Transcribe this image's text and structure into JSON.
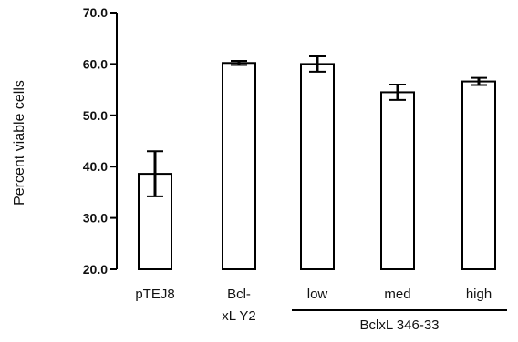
{
  "chart_data": {
    "type": "bar",
    "title": "",
    "ylabel": "Percent viable cells",
    "ylim": [
      20,
      70
    ],
    "yticks": [
      "20.0",
      "30.0",
      "40.0",
      "50.0",
      "60.0",
      "70.0"
    ],
    "categories": [
      [
        "pTEJ8"
      ],
      [
        "Bcl-",
        "xL Y2"
      ],
      [
        "low"
      ],
      [
        "med"
      ],
      [
        "high"
      ]
    ],
    "values": [
      38.6,
      60.2,
      60.0,
      54.5,
      56.6
    ],
    "errors": [
      4.4,
      0.4,
      1.5,
      1.5,
      0.7
    ],
    "group_label": "BclxL 346-33",
    "grid": false,
    "bar_fill": "#ffffff",
    "bar_stroke": "#000000",
    "axis_color": "#000000"
  }
}
